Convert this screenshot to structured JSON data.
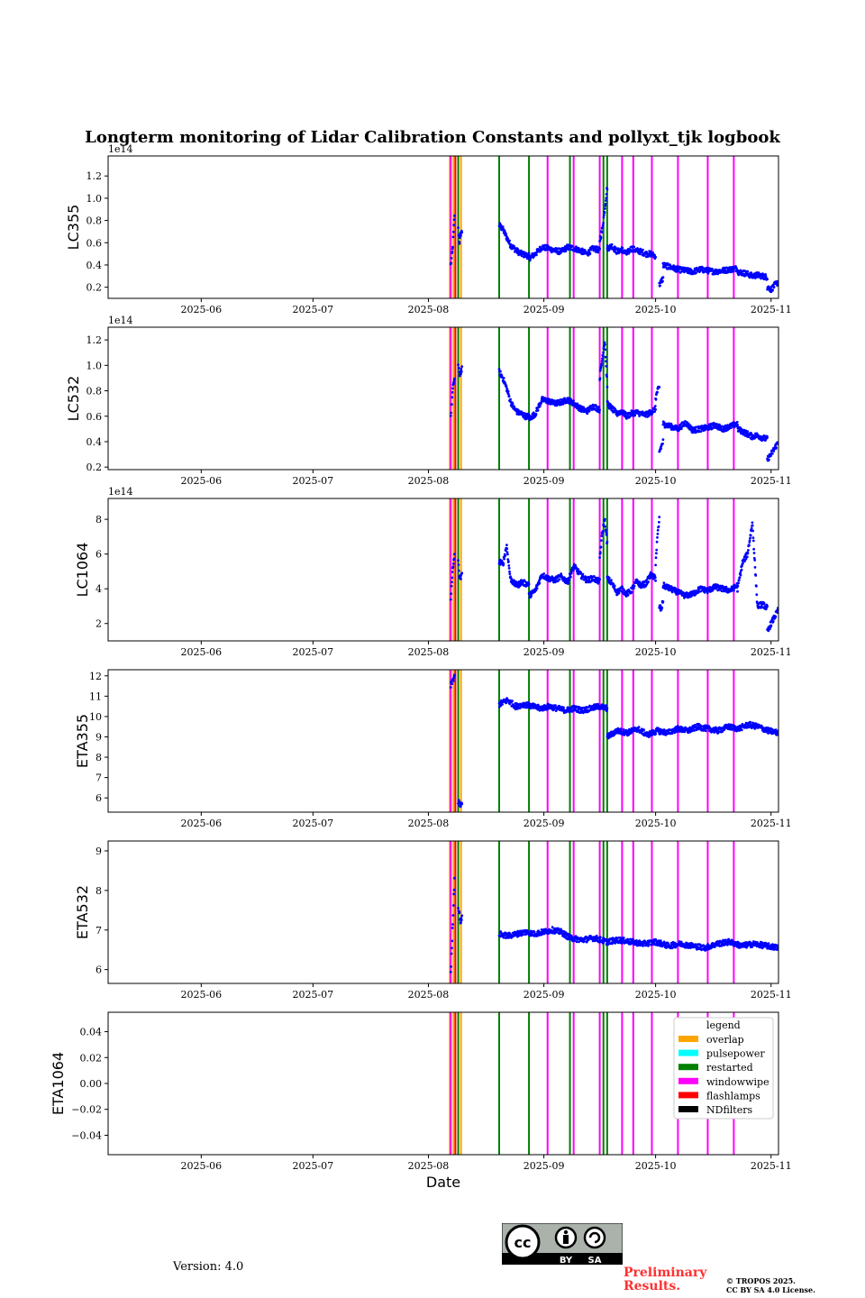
{
  "title": "Longterm monitoring of Lidar Calibration Constants and pollyxt_tjk logbook",
  "xlabel": "Date",
  "x_ticks": [
    "2025-06",
    "2025-07",
    "2025-08",
    "2025-09",
    "2025-10",
    "2025-11"
  ],
  "version": "Version: 4.0",
  "preliminary": [
    "Preliminary",
    "Results."
  ],
  "copyright": [
    "© TROPOS 2025.",
    "CC BY SA 4.0 License."
  ],
  "license_badge": {
    "cc": "cc",
    "by": "BY",
    "sa": "SA"
  },
  "legend": {
    "title": "legend",
    "entries": [
      {
        "label": "overlap",
        "color": "#ffa500"
      },
      {
        "label": "pulsepower",
        "color": "#00ffff"
      },
      {
        "label": "restarted",
        "color": "#008000"
      },
      {
        "label": "windowwipe",
        "color": "#ff00ff"
      },
      {
        "label": "flashlamps",
        "color": "#ff0000"
      },
      {
        "label": "NDfilters",
        "color": "#000000"
      }
    ]
  },
  "chart_data": {
    "type": "scatter",
    "x_range": [
      "2025-05-07",
      "2025-11-03"
    ],
    "marker_color": "#0000ff",
    "logbook_events": [
      {
        "date": "2025-08-07",
        "type": "overlap"
      },
      {
        "date": "2025-08-07",
        "type": "windowwipe"
      },
      {
        "date": "2025-08-08",
        "type": "flashlamps"
      },
      {
        "date": "2025-08-08",
        "type": "overlap"
      },
      {
        "date": "2025-08-09",
        "type": "NDfilters"
      },
      {
        "date": "2025-08-09",
        "type": "restarted"
      },
      {
        "date": "2025-08-10",
        "type": "overlap"
      },
      {
        "date": "2025-08-20",
        "type": "restarted"
      },
      {
        "date": "2025-08-28",
        "type": "restarted"
      },
      {
        "date": "2025-09-02",
        "type": "windowwipe"
      },
      {
        "date": "2025-09-08",
        "type": "restarted"
      },
      {
        "date": "2025-09-09",
        "type": "windowwipe"
      },
      {
        "date": "2025-09-16",
        "type": "windowwipe"
      },
      {
        "date": "2025-09-17",
        "type": "restarted"
      },
      {
        "date": "2025-09-18",
        "type": "restarted"
      },
      {
        "date": "2025-09-22",
        "type": "windowwipe"
      },
      {
        "date": "2025-09-25",
        "type": "windowwipe"
      },
      {
        "date": "2025-09-30",
        "type": "windowwipe"
      },
      {
        "date": "2025-10-07",
        "type": "windowwipe"
      },
      {
        "date": "2025-10-15",
        "type": "windowwipe"
      },
      {
        "date": "2025-10-22",
        "type": "windowwipe"
      }
    ],
    "panels": [
      {
        "ylabel": "LC355",
        "offset_label": "1e14",
        "scale": 100000000000000.0,
        "ylim": [
          0.1,
          1.38
        ],
        "yticks": [
          0.2,
          0.4,
          0.6,
          0.8,
          1.0,
          1.2
        ],
        "ytick_labels": [
          "0.2",
          "0.4",
          "0.6",
          "0.8",
          "1.0",
          "1.2"
        ],
        "segments": [
          {
            "start": "2025-08-07",
            "end": "2025-08-08",
            "values": [
              0.4,
              0.55,
              0.85
            ]
          },
          {
            "start": "2025-08-09",
            "end": "2025-08-10",
            "values": [
              0.72,
              0.6,
              0.68,
              0.7
            ]
          },
          {
            "start": "2025-08-20",
            "end": "2025-08-28",
            "values": [
              0.76,
              0.72,
              0.65,
              0.58,
              0.55,
              0.52,
              0.5,
              0.49,
              0.48
            ]
          },
          {
            "start": "2025-08-28",
            "end": "2025-09-16",
            "values": [
              0.46,
              0.5,
              0.56,
              0.55,
              0.53,
              0.52,
              0.56,
              0.55,
              0.53,
              0.5,
              0.55,
              0.53
            ]
          },
          {
            "start": "2025-09-16",
            "end": "2025-09-18",
            "values": [
              0.62,
              0.72,
              0.9,
              1.1
            ]
          },
          {
            "start": "2025-09-18",
            "end": "2025-10-01",
            "values": [
              0.55,
              0.57,
              0.52,
              0.54,
              0.5,
              0.55,
              0.53,
              0.52,
              0.5,
              0.5,
              0.48
            ]
          },
          {
            "start": "2025-10-02",
            "end": "2025-10-03",
            "values": [
              0.22,
              0.25,
              0.28
            ]
          },
          {
            "start": "2025-10-03",
            "end": "2025-10-23",
            "values": [
              0.4,
              0.38,
              0.36,
              0.35,
              0.34,
              0.36,
              0.35,
              0.34,
              0.35,
              0.36,
              0.37
            ]
          },
          {
            "start": "2025-10-23",
            "end": "2025-10-31",
            "values": [
              0.34,
              0.33,
              0.32,
              0.3,
              0.31,
              0.3,
              0.29
            ]
          },
          {
            "start": "2025-10-31",
            "end": "2025-11-03",
            "values": [
              0.2,
              0.18,
              0.22,
              0.25
            ]
          }
        ]
      },
      {
        "ylabel": "LC532",
        "offset_label": "1e14",
        "scale": 100000000000000.0,
        "ylim": [
          0.18,
          1.3
        ],
        "yticks": [
          0.2,
          0.4,
          0.6,
          0.8,
          1.0,
          1.2
        ],
        "ytick_labels": [
          "0.2",
          "0.4",
          "0.6",
          "0.8",
          "1.0",
          "1.2"
        ],
        "segments": [
          {
            "start": "2025-08-07",
            "end": "2025-08-08",
            "values": [
              0.6,
              0.8,
              0.9
            ]
          },
          {
            "start": "2025-08-09",
            "end": "2025-08-10",
            "values": [
              1.0,
              0.92,
              0.95,
              0.97
            ]
          },
          {
            "start": "2025-08-20",
            "end": "2025-08-28",
            "values": [
              0.95,
              0.9,
              0.82,
              0.72,
              0.66,
              0.63,
              0.62,
              0.6,
              0.6
            ]
          },
          {
            "start": "2025-08-28",
            "end": "2025-09-16",
            "values": [
              0.58,
              0.62,
              0.73,
              0.72,
              0.7,
              0.71,
              0.73,
              0.7,
              0.66,
              0.64,
              0.68,
              0.65
            ]
          },
          {
            "start": "2025-09-16",
            "end": "2025-09-18",
            "values": [
              0.9,
              1.05,
              1.2,
              0.85
            ]
          },
          {
            "start": "2025-09-18",
            "end": "2025-10-01",
            "values": [
              0.7,
              0.66,
              0.62,
              0.64,
              0.6,
              0.62,
              0.63,
              0.62,
              0.61,
              0.63,
              0.66
            ]
          },
          {
            "start": "2025-10-01",
            "end": "2025-10-02",
            "values": [
              0.74,
              0.8,
              0.82
            ]
          },
          {
            "start": "2025-10-02",
            "end": "2025-10-03",
            "values": [
              0.32,
              0.36,
              0.4
            ]
          },
          {
            "start": "2025-10-03",
            "end": "2025-10-23",
            "values": [
              0.54,
              0.52,
              0.5,
              0.55,
              0.49,
              0.5,
              0.51,
              0.53,
              0.5,
              0.52,
              0.54
            ]
          },
          {
            "start": "2025-10-23",
            "end": "2025-10-31",
            "values": [
              0.5,
              0.48,
              0.46,
              0.44,
              0.45,
              0.43,
              0.42
            ]
          },
          {
            "start": "2025-10-31",
            "end": "2025-11-03",
            "values": [
              0.26,
              0.3,
              0.35,
              0.4
            ]
          }
        ]
      },
      {
        "ylabel": "LC1064",
        "offset_label": "1e14",
        "scale": 100000000000000.0,
        "ylim": [
          1.0,
          9.2
        ],
        "yticks": [
          2,
          4,
          6,
          8
        ],
        "ytick_labels": [
          "2",
          "4",
          "6",
          "8"
        ],
        "segments": [
          {
            "start": "2025-08-07",
            "end": "2025-08-08",
            "values": [
              3.5,
              5.0,
              6.0
            ]
          },
          {
            "start": "2025-08-09",
            "end": "2025-08-10",
            "values": [
              5.5,
              4.7,
              4.6,
              4.8
            ]
          },
          {
            "start": "2025-08-20",
            "end": "2025-08-28",
            "values": [
              5.6,
              5.4,
              6.5,
              4.6,
              4.3,
              4.2,
              4.4,
              4.3,
              4.3
            ]
          },
          {
            "start": "2025-08-28",
            "end": "2025-09-16",
            "values": [
              3.6,
              3.9,
              4.8,
              4.6,
              4.5,
              4.7,
              4.4,
              5.3,
              4.8,
              4.5,
              4.6,
              4.4
            ]
          },
          {
            "start": "2025-09-16",
            "end": "2025-09-18",
            "values": [
              5.8,
              7.2,
              8.0,
              6.6
            ]
          },
          {
            "start": "2025-09-18",
            "end": "2025-10-01",
            "values": [
              4.6,
              4.3,
              3.8,
              4.0,
              3.7,
              3.9,
              4.4,
              4.2,
              4.3,
              4.8,
              4.6
            ]
          },
          {
            "start": "2025-10-01",
            "end": "2025-10-02",
            "values": [
              5.5,
              7.0,
              8.0
            ]
          },
          {
            "start": "2025-10-02",
            "end": "2025-10-03",
            "values": [
              3.0,
              2.8,
              3.3
            ]
          },
          {
            "start": "2025-10-03",
            "end": "2025-10-23",
            "values": [
              4.2,
              4.0,
              3.8,
              3.6,
              3.7,
              4.0,
              3.9,
              4.1,
              4.0,
              3.9,
              4.2
            ]
          },
          {
            "start": "2025-10-23",
            "end": "2025-10-31",
            "values": [
              4.0,
              5.5,
              6.0,
              7.8,
              3.0,
              3.1,
              2.9
            ]
          },
          {
            "start": "2025-10-31",
            "end": "2025-11-03",
            "values": [
              1.5,
              2.0,
              2.4,
              2.8
            ]
          }
        ]
      },
      {
        "ylabel": "ETA355",
        "offset_label": "",
        "scale": 1,
        "ylim": [
          5.3,
          12.3
        ],
        "yticks": [
          6,
          7,
          8,
          9,
          10,
          11,
          12
        ],
        "ytick_labels": [
          "6",
          "7",
          "8",
          "9",
          "10",
          "11",
          "12"
        ],
        "segments": [
          {
            "start": "2025-08-07",
            "end": "2025-08-08",
            "values": [
              11.5,
              12.0
            ]
          },
          {
            "start": "2025-08-09",
            "end": "2025-08-10",
            "values": [
              5.8,
              5.7,
              5.6,
              5.7
            ]
          },
          {
            "start": "2025-08-20",
            "end": "2025-09-18",
            "values": [
              10.6,
              10.8,
              10.5,
              10.6,
              10.5,
              10.4,
              10.5,
              10.4,
              10.3,
              10.4,
              10.3,
              10.4,
              10.5,
              10.4
            ]
          },
          {
            "start": "2025-09-18",
            "end": "2025-11-03",
            "values": [
              9.0,
              9.3,
              9.2,
              9.4,
              9.1,
              9.3,
              9.2,
              9.4,
              9.3,
              9.5,
              9.4,
              9.3,
              9.5,
              9.4,
              9.6,
              9.5,
              9.3,
              9.2
            ]
          }
        ]
      },
      {
        "ylabel": "ETA532",
        "offset_label": "",
        "scale": 1,
        "ylim": [
          5.65,
          9.25
        ],
        "yticks": [
          6,
          7,
          8,
          9
        ],
        "ytick_labels": [
          "6",
          "7",
          "8",
          "9"
        ],
        "segments": [
          {
            "start": "2025-08-07",
            "end": "2025-08-08",
            "values": [
              5.9,
              8.3
            ]
          },
          {
            "start": "2025-08-09",
            "end": "2025-08-10",
            "values": [
              7.6,
              7.4,
              7.2,
              7.3
            ]
          },
          {
            "start": "2025-08-20",
            "end": "2025-09-08",
            "values": [
              6.9,
              6.85,
              6.9,
              6.95,
              6.9,
              6.95,
              7.0,
              6.95,
              6.8
            ]
          },
          {
            "start": "2025-09-08",
            "end": "2025-11-03",
            "values": [
              6.8,
              6.75,
              6.8,
              6.7,
              6.75,
              6.7,
              6.65,
              6.7,
              6.6,
              6.65,
              6.6,
              6.55,
              6.65,
              6.7,
              6.6,
              6.65,
              6.6,
              6.55
            ]
          }
        ]
      },
      {
        "ylabel": "ETA1064",
        "offset_label": "",
        "scale": 1,
        "ylim": [
          -0.055,
          0.055
        ],
        "yticks": [
          -0.04,
          -0.02,
          0.0,
          0.02,
          0.04
        ],
        "ytick_labels": [
          "−0.04",
          "−0.02",
          "0.00",
          "0.02",
          "0.04"
        ],
        "segments": []
      }
    ]
  }
}
